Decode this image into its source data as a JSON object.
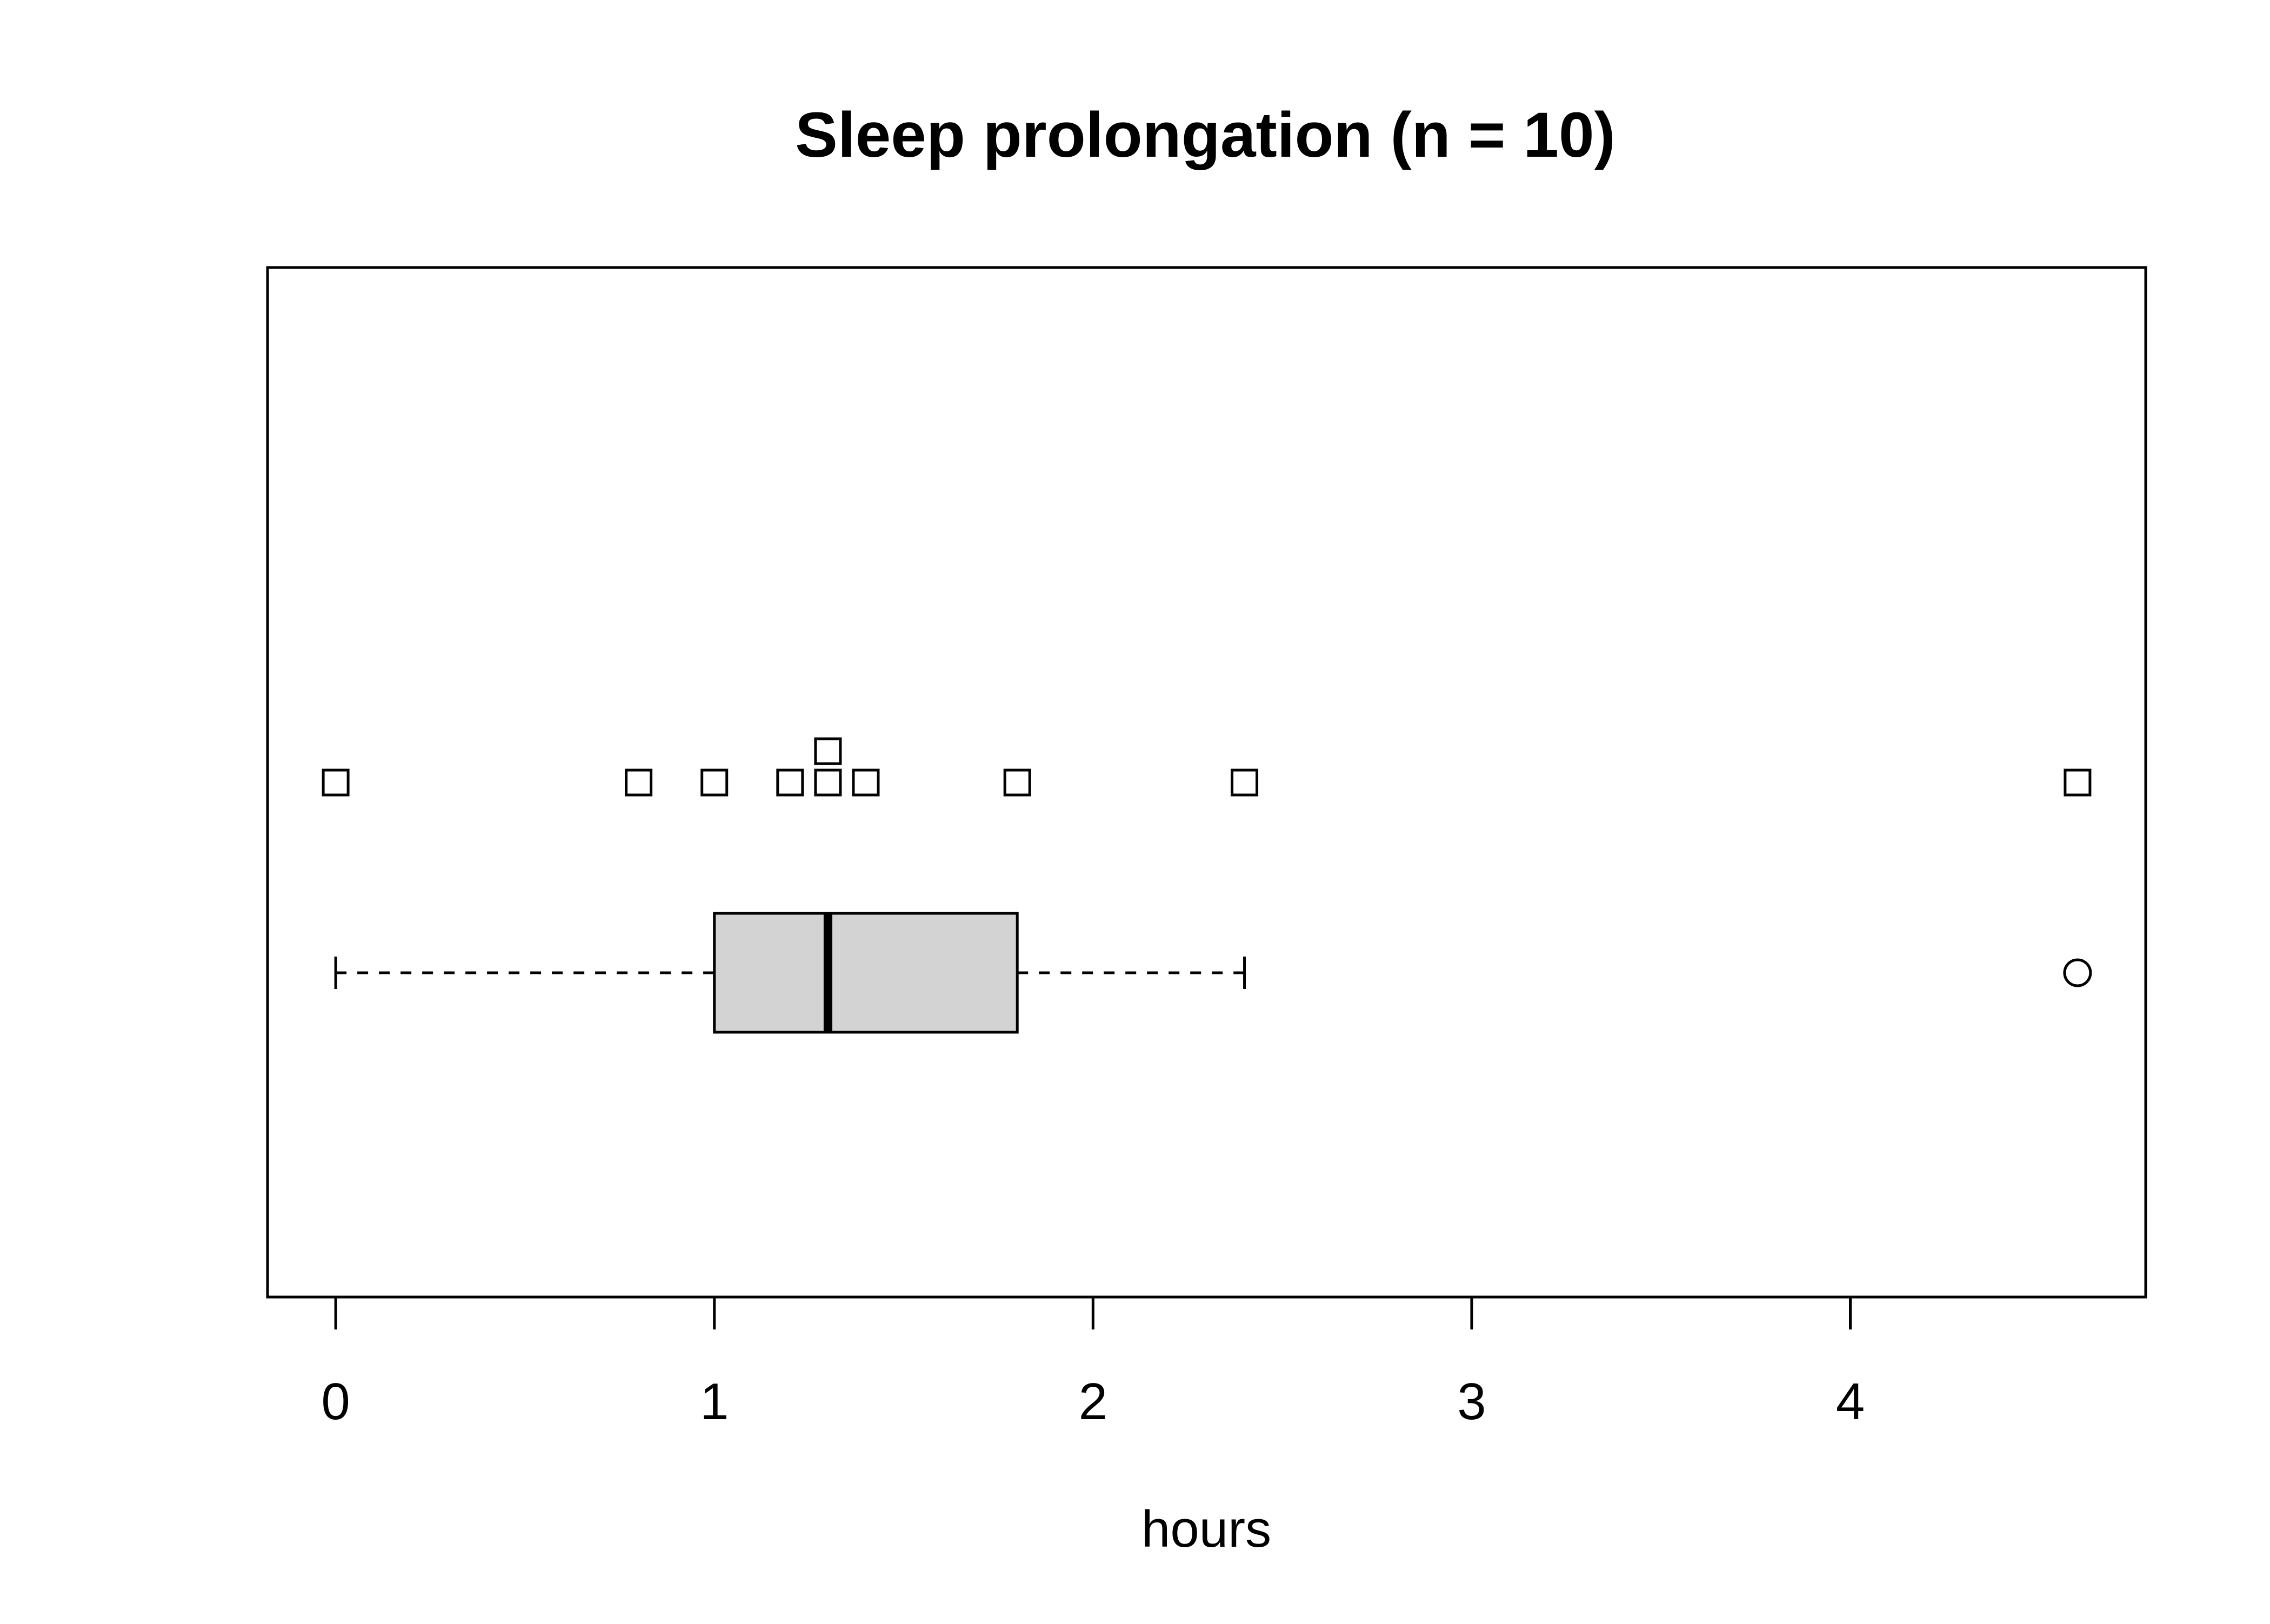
{
  "chart_data": {
    "type": "boxplot",
    "title": "Sleep prolongation (n = 10)",
    "xlabel": "hours",
    "ylabel": "",
    "orientation": "horizontal",
    "xlim": [
      -0.18,
      4.78
    ],
    "x_ticks": [
      0,
      1,
      2,
      3,
      4
    ],
    "x_tick_labels": [
      "0",
      "1",
      "2",
      "3",
      "4"
    ],
    "grid": false,
    "box": {
      "whisker_low": 0.0,
      "q1": 1.0,
      "median": 1.3,
      "q3": 1.8,
      "whisker_high": 2.4,
      "outliers": [
        4.6
      ],
      "fill": "#d3d3d3"
    },
    "strip_points": [
      0.0,
      0.8,
      1.0,
      1.2,
      1.3,
      1.3,
      1.4,
      1.8,
      2.4,
      4.6
    ],
    "colors": {
      "ink": "#000000",
      "box_fill": "#d3d3d3",
      "background": "#ffffff"
    }
  }
}
